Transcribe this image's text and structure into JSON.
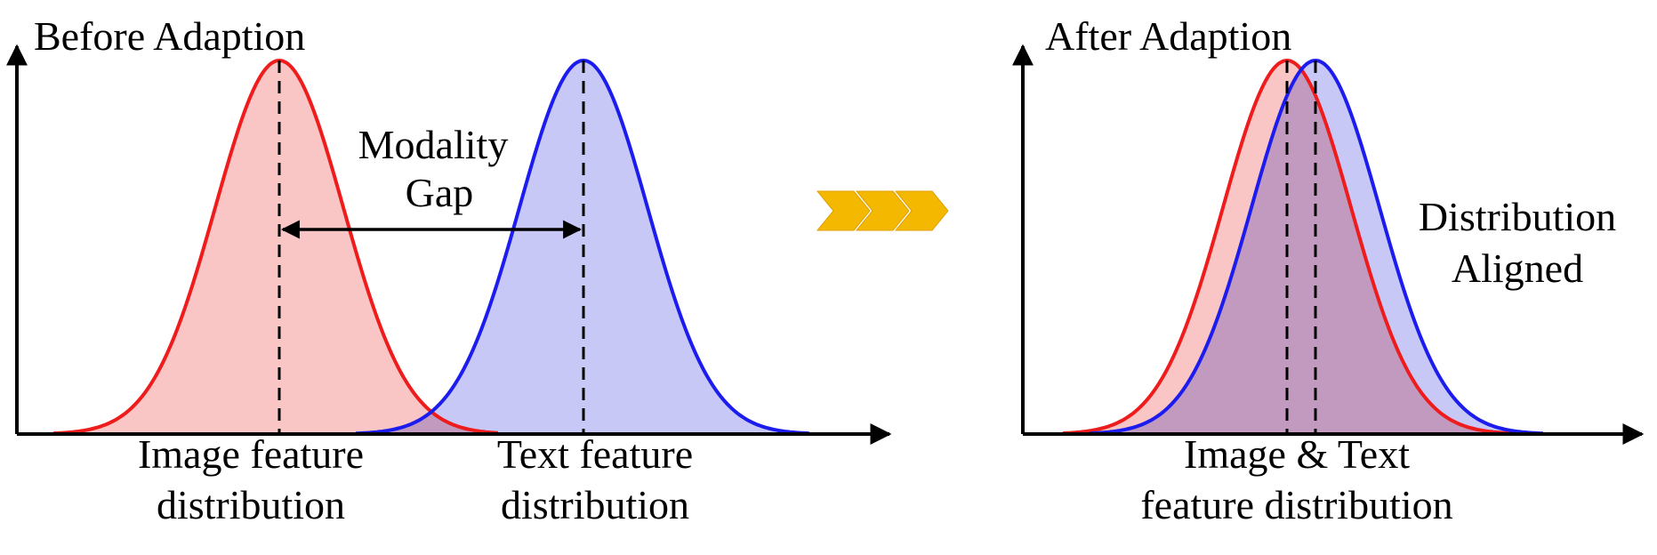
{
  "left_panel": {
    "title": "Before Adaption",
    "gap_label_line1": "Modality",
    "gap_label_line2": "Gap",
    "image_dist_line1": "Image feature",
    "image_dist_line2": "distribution",
    "text_dist_line1": "Text feature",
    "text_dist_line2": "distribution"
  },
  "right_panel": {
    "title": "After Adaption",
    "aligned_line1": "Distribution",
    "aligned_line2": "Aligned",
    "combined_line1": "Image & Text",
    "combined_line2": "feature distribution"
  },
  "colors": {
    "image_curve": "#ee1c1c",
    "image_fill": "#f9c5c5",
    "text_curve": "#1c1cee",
    "text_fill": "#c8c8f7",
    "arrow_chevrons": "#f5b800"
  },
  "icons": [
    "chevron-arrows-icon"
  ]
}
